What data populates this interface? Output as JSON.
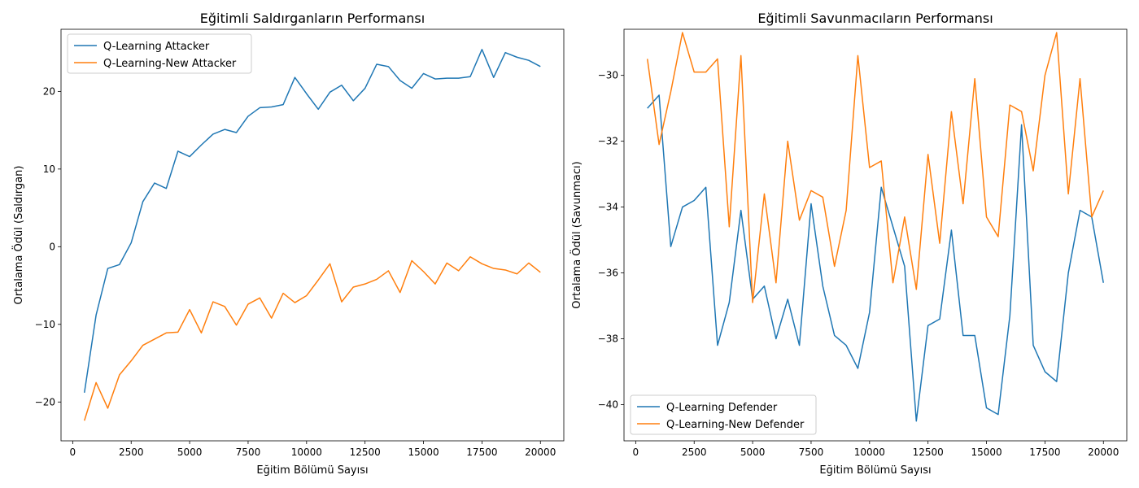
{
  "figure": {
    "background": "#ffffff",
    "colors": {
      "blue": "#1f77b4",
      "orange": "#ff7f0e"
    }
  },
  "chart_data": [
    {
      "type": "line",
      "title": "Eğitimli Saldırganların Performansı",
      "xlabel": "Eğitim Bölümü Sayısı",
      "ylabel": "Ortalama Ödül (Saldırgan)",
      "xlim": [
        -500,
        21000
      ],
      "ylim": [
        -25,
        28
      ],
      "xticks": [
        0,
        2500,
        5000,
        7500,
        10000,
        12500,
        15000,
        17500,
        20000
      ],
      "yticks": [
        -20,
        -10,
        0,
        10,
        20
      ],
      "grid": false,
      "legend_position": "top-left",
      "x": [
        500,
        1000,
        1500,
        2000,
        2500,
        3000,
        3500,
        4000,
        4500,
        5000,
        5500,
        6000,
        6500,
        7000,
        7500,
        8000,
        8500,
        9000,
        9500,
        10000,
        10500,
        11000,
        11500,
        12000,
        12500,
        13000,
        13500,
        14000,
        14500,
        15000,
        15500,
        16000,
        16500,
        17000,
        17500,
        18000,
        18500,
        19000,
        19500,
        20000
      ],
      "series": [
        {
          "name": "Q-Learning Attacker",
          "color": "#1f77b4",
          "values": [
            -18.8,
            -8.8,
            -2.8,
            -2.3,
            0.5,
            5.8,
            8.2,
            7.5,
            12.3,
            11.6,
            13.1,
            14.5,
            15.1,
            14.7,
            16.8,
            17.9,
            18.0,
            18.3,
            21.8,
            19.7,
            17.7,
            19.9,
            20.8,
            18.8,
            20.4,
            23.5,
            23.2,
            21.4,
            20.4,
            22.3,
            21.6,
            21.7,
            21.7,
            21.9,
            25.4,
            21.8,
            25.0,
            24.4,
            24.0,
            23.2
          ]
        },
        {
          "name": "Q-Learning-New Attacker",
          "color": "#ff7f0e",
          "values": [
            -22.4,
            -17.5,
            -20.8,
            -16.5,
            -14.7,
            -12.7,
            -11.9,
            -11.1,
            -11.0,
            -8.1,
            -11.1,
            -7.1,
            -7.7,
            -10.1,
            -7.4,
            -6.6,
            -9.2,
            -6.0,
            -7.2,
            -6.3,
            -4.3,
            -2.2,
            -7.1,
            -5.2,
            -4.8,
            -4.2,
            -3.1,
            -5.9,
            -1.8,
            -3.2,
            -4.8,
            -2.1,
            -3.1,
            -1.3,
            -2.2,
            -2.8,
            -3.0,
            -3.5,
            -2.1,
            -3.3
          ]
        }
      ]
    },
    {
      "type": "line",
      "title": "Eğitimli Savunmacıların Performansı",
      "xlabel": "Eğitim Bölümü Sayısı",
      "ylabel": "Ortalama Ödül (Savunmacı)",
      "xlim": [
        -500,
        21000
      ],
      "ylim": [
        -41.1,
        -28.6
      ],
      "xticks": [
        0,
        2500,
        5000,
        7500,
        10000,
        12500,
        15000,
        17500,
        20000
      ],
      "yticks": [
        -40,
        -38,
        -36,
        -34,
        -32,
        -30
      ],
      "grid": false,
      "legend_position": "bottom-left",
      "x": [
        500,
        1000,
        1500,
        2000,
        2500,
        3000,
        3500,
        4000,
        4500,
        5000,
        5500,
        6000,
        6500,
        7000,
        7500,
        8000,
        8500,
        9000,
        9500,
        10000,
        10500,
        11000,
        11500,
        12000,
        12500,
        13000,
        13500,
        14000,
        14500,
        15000,
        15500,
        16000,
        16500,
        17000,
        17500,
        18000,
        18500,
        19000,
        19500,
        20000
      ],
      "series": [
        {
          "name": "Q-Learning Defender",
          "color": "#1f77b4",
          "values": [
            -31.0,
            -30.6,
            -35.2,
            -34.0,
            -33.8,
            -33.4,
            -38.2,
            -36.9,
            -34.1,
            -36.8,
            -36.4,
            -38.0,
            -36.8,
            -38.2,
            -33.9,
            -36.4,
            -37.9,
            -38.2,
            -38.9,
            -37.2,
            -33.4,
            -34.6,
            -35.8,
            -40.5,
            -37.6,
            -37.4,
            -34.7,
            -37.9,
            -37.9,
            -40.1,
            -40.3,
            -37.3,
            -31.5,
            -38.2,
            -39.0,
            -39.3,
            -36.0,
            -34.1,
            -34.3,
            -36.3
          ]
        },
        {
          "name": "Q-Learning-New Defender",
          "color": "#ff7f0e",
          "values": [
            -29.5,
            -32.1,
            -30.5,
            -28.7,
            -29.9,
            -29.9,
            -29.5,
            -34.6,
            -29.4,
            -36.9,
            -33.6,
            -36.3,
            -32.0,
            -34.4,
            -33.5,
            -33.7,
            -35.8,
            -34.1,
            -29.4,
            -32.8,
            -32.6,
            -36.3,
            -34.3,
            -36.5,
            -32.4,
            -35.1,
            -31.1,
            -33.9,
            -30.1,
            -34.3,
            -34.9,
            -30.9,
            -31.1,
            -32.9,
            -30.0,
            -28.7,
            -33.6,
            -30.1,
            -34.3,
            -33.5
          ]
        }
      ]
    }
  ]
}
